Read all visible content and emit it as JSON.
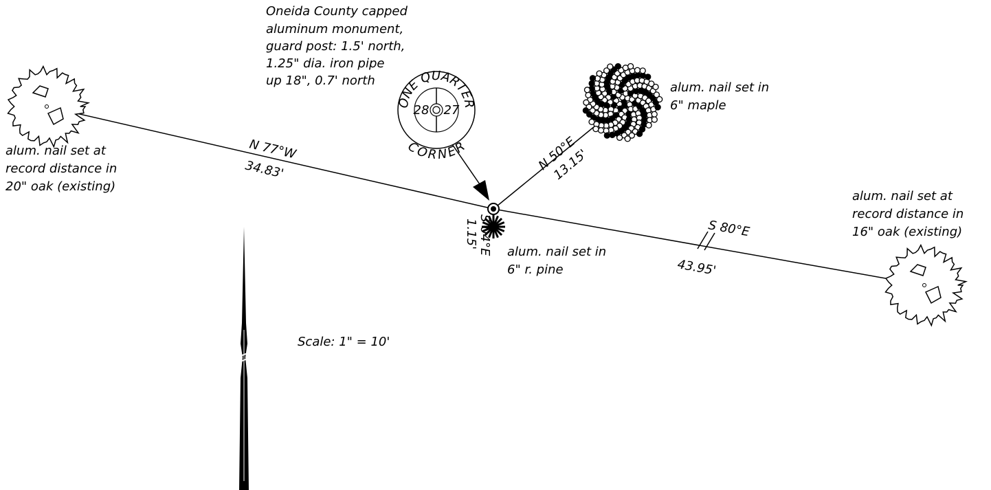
{
  "monument": {
    "description": [
      "Oneida County capped",
      "aluminum monument,",
      "guard post: 1.5' north,",
      "1.25\" dia. iron pipe",
      "up 18\", 0.7' north"
    ],
    "badge": {
      "top": "ONE QUARTER",
      "bottom": "CORNER",
      "left": "28",
      "right": "27"
    }
  },
  "ties": [
    {
      "bearing": "N 77°W",
      "distance": "34.83'",
      "label": [
        "alum. nail set at",
        "record distance in",
        "20\" oak (existing)"
      ]
    },
    {
      "bearing": "N 50°E",
      "distance": "13.15'",
      "label": [
        "alum. nail set in",
        "6\" maple"
      ]
    },
    {
      "bearing": "S 04°E",
      "distance": "1.15'",
      "label": [
        "alum. nail set in",
        "6\" r. pine"
      ]
    },
    {
      "bearing": "S 80°E",
      "distance": "43.95'",
      "label": [
        "alum. nail set at",
        "record distance in",
        "16\" oak (existing)"
      ]
    }
  ],
  "scale": "Scale: 1\" = 10'"
}
